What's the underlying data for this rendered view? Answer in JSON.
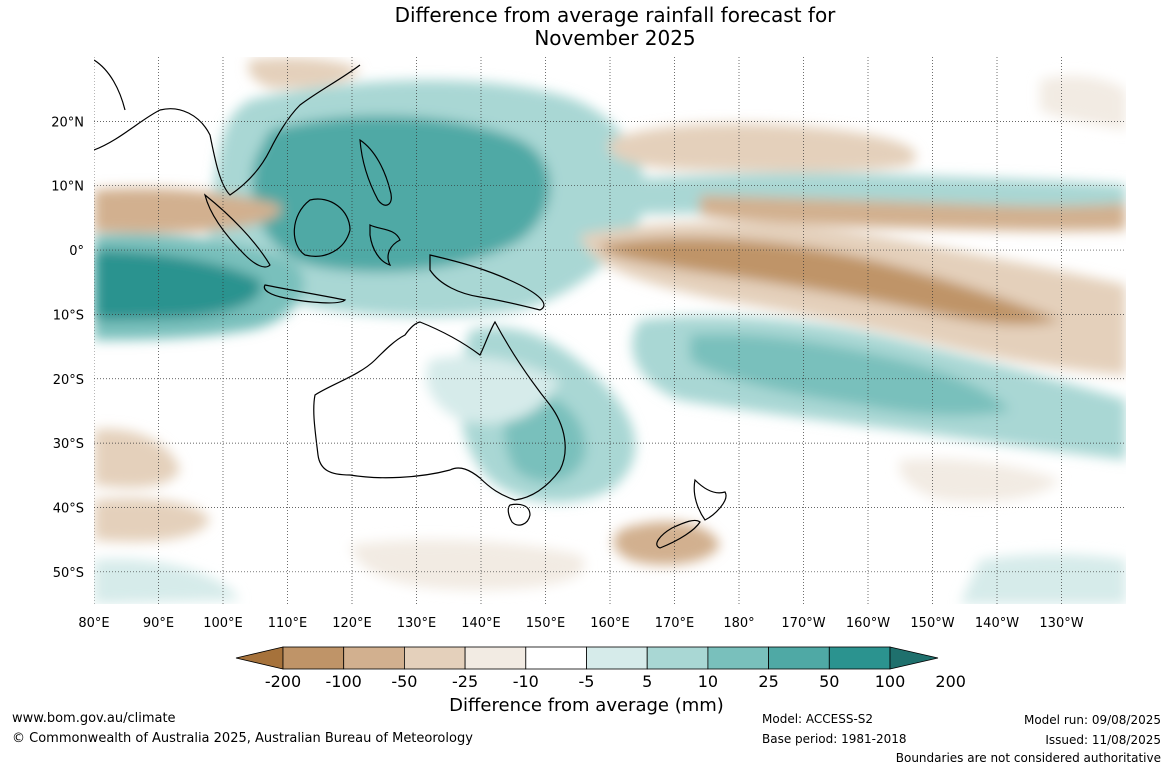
{
  "title": {
    "line1": "Difference from average rainfall forecast for",
    "line2": "November 2025"
  },
  "map": {
    "lat_labels": [
      "20°N",
      "10°N",
      "0°",
      "10°S",
      "20°S",
      "30°S",
      "40°S",
      "50°S"
    ],
    "lon_labels": [
      "80°E",
      "90°E",
      "100°E",
      "110°E",
      "120°E",
      "130°E",
      "140°E",
      "150°E",
      "160°E",
      "170°E",
      "180°",
      "170°W",
      "160°W",
      "150°W",
      "140°W",
      "130°W"
    ],
    "lat_range": [
      -55,
      30
    ],
    "lon_range": [
      80,
      240
    ],
    "gridlines": true
  },
  "colorbar": {
    "title": "Difference from average (mm)",
    "labels": [
      "-200",
      "-100",
      "-50",
      "-25",
      "-10",
      "-5",
      "5",
      "10",
      "25",
      "50",
      "100",
      "200"
    ],
    "colors": [
      "#a6723b",
      "#bf9468",
      "#d2b08f",
      "#e4d0bb",
      "#f2ebe3",
      "#ffffff",
      "#d6ebea",
      "#a9d7d4",
      "#79c0bc",
      "#4fa9a5",
      "#2b938f",
      "#1f706d"
    ]
  },
  "footer": {
    "website": "www.bom.gov.au/climate",
    "copyright": "© Commonwealth of Australia 2025, Australian Bureau of Meteorology",
    "model": "Model: ACCESS-S2",
    "base_period": "Base period: 1981-2018",
    "model_run": "Model run: 09/08/2025",
    "issued": "Issued: 11/08/2025",
    "disclaimer": "Boundaries are not considered authoritative"
  }
}
